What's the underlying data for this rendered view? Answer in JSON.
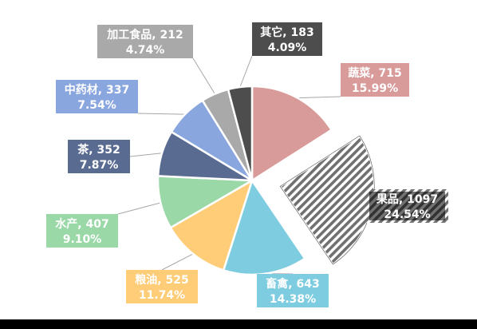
{
  "chart_data": {
    "type": "pie",
    "title": "",
    "legend": "none",
    "slices": [
      {
        "name": "蔬菜",
        "value": 715,
        "percent": "15.99%",
        "color": "#D99A9A",
        "label_text": "#ffffff"
      },
      {
        "name": "果品",
        "value": 1097,
        "percent": "24.54%",
        "color": "#7F7F7F",
        "pattern": "diagonal-hatch",
        "exploded": true,
        "label_text": "#ffffff"
      },
      {
        "name": "畜禽",
        "value": 643,
        "percent": "14.38%",
        "color": "#7ECCE0",
        "label_text": "#ffffff"
      },
      {
        "name": "粮油",
        "value": 525,
        "percent": "11.74%",
        "color": "#FFCC77",
        "label_text": "#ffffff"
      },
      {
        "name": "水产",
        "value": 407,
        "percent": "9.10%",
        "color": "#9AD8A8",
        "label_text": "#ffffff"
      },
      {
        "name": "茶",
        "value": 352,
        "percent": "7.87%",
        "color": "#5A6B92",
        "label_text": "#ffffff"
      },
      {
        "name": "中药材",
        "value": 337,
        "percent": "7.54%",
        "color": "#8AA6DF",
        "label_text": "#ffffff"
      },
      {
        "name": "加工食品",
        "value": 212,
        "percent": "4.74%",
        "color": "#A9A9A9",
        "label_text": "#ffffff"
      },
      {
        "name": "其它",
        "value": 183,
        "percent": "4.09%",
        "color": "#4D4D4D",
        "label_text": "#ffffff"
      }
    ]
  }
}
